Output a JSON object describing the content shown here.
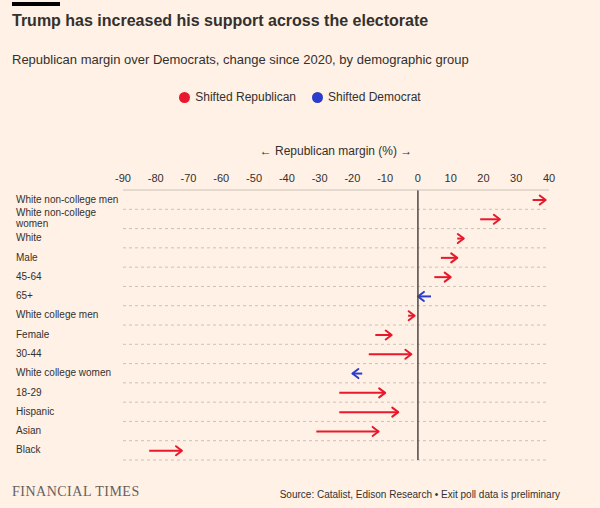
{
  "chart_data": {
    "type": "arrow",
    "orientation": "horizontal",
    "title": "Trump has increased his support across the electorate",
    "subtitle": "Republican margin over Democrats, change since 2020, by demographic group",
    "xlabel": "← Republican margin (%) →",
    "source": "Source: Catalist, Edison Research • Exit poll data is preliminary",
    "logo": "FINANCIAL TIMES",
    "legend": "top",
    "grid": true,
    "series": [
      {
        "name": "Shifted Republican",
        "color": "#e8192c"
      },
      {
        "name": "Shifted Democrat",
        "color": "#2b3bcc"
      }
    ],
    "categories": [
      "White non-college men",
      "White non-college women",
      "White",
      "Male",
      "45-64",
      "65+",
      "White college men",
      "Female",
      "30-44",
      "White college women",
      "18-29",
      "Hispanic",
      "Asian",
      "Black"
    ],
    "values": [
      [
        35,
        39
      ],
      [
        19,
        25
      ],
      [
        12,
        14
      ],
      [
        7,
        12
      ],
      [
        5,
        10
      ],
      [
        4,
        0
      ],
      [
        -3,
        -1
      ],
      [
        -13,
        -8
      ],
      [
        -15,
        -2
      ],
      [
        -17,
        -20
      ],
      [
        -24,
        -10
      ],
      [
        -24,
        -6
      ],
      [
        -31,
        -12
      ],
      [
        -82,
        -72
      ]
    ],
    "xlim": [
      -90,
      40
    ],
    "xticks": [
      -90,
      -80,
      -70,
      -60,
      -50,
      -40,
      -30,
      -20,
      -10,
      0,
      10,
      20,
      30,
      40
    ]
  }
}
